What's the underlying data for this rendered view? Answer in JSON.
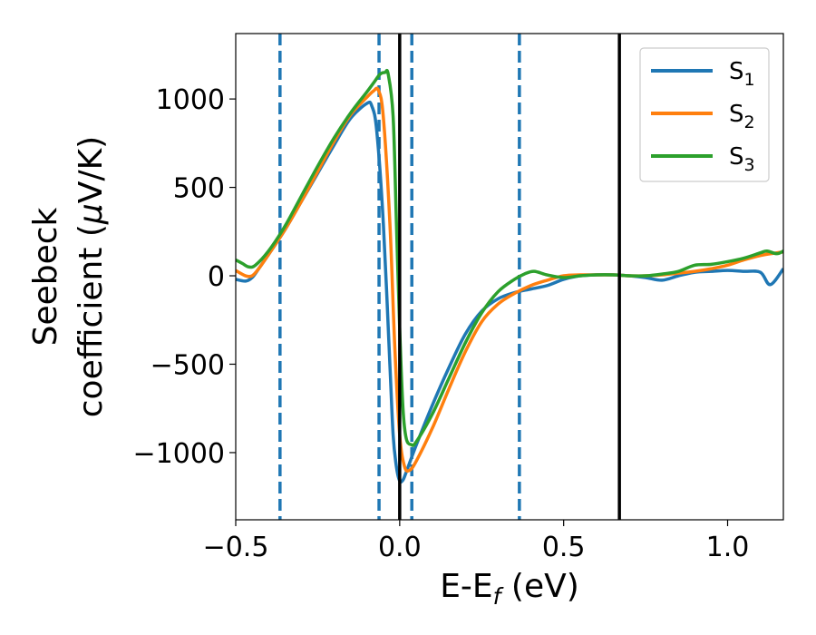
{
  "chart_data": {
    "type": "line",
    "xlabel": {
      "main": "E-E",
      "sub": "f",
      "tail": " (eV)"
    },
    "ylabel": {
      "line1": "Seebeck",
      "line2_prefix": "coefficient  (",
      "mu": "μ",
      "line2_suffix": "V/K)"
    },
    "xlim": [
      -0.5,
      1.17
    ],
    "ylim": [
      -1380,
      1370
    ],
    "xticks": [
      {
        "value": -0.5,
        "label": "−0.5"
      },
      {
        "value": 0.0,
        "label": "0.0"
      },
      {
        "value": 0.5,
        "label": "0.5"
      },
      {
        "value": 1.0,
        "label": "1.0"
      }
    ],
    "yticks": [
      {
        "value": -1000,
        "label": "−1000"
      },
      {
        "value": -500,
        "label": "−500"
      },
      {
        "value": 0,
        "label": "0"
      },
      {
        "value": 500,
        "label": "500"
      },
      {
        "value": 1000,
        "label": "1000"
      }
    ],
    "grid": false,
    "legend_position": "top-right",
    "vlines_dashed": {
      "x": [
        -0.365,
        -0.063,
        0.037,
        0.365
      ],
      "color": "#1f77b4"
    },
    "vlines_solid": {
      "x": [
        0.0,
        0.67
      ],
      "color": "#000000"
    },
    "series": [
      {
        "name": "S",
        "sub": "1",
        "color": "#1f77b4",
        "x": [
          -0.5,
          -0.47,
          -0.45,
          -0.43,
          -0.4,
          -0.35,
          -0.3,
          -0.25,
          -0.2,
          -0.15,
          -0.1,
          -0.085,
          -0.07,
          -0.05,
          -0.03,
          -0.02,
          -0.01,
          0.0,
          0.01,
          0.02,
          0.05,
          0.1,
          0.15,
          0.2,
          0.25,
          0.3,
          0.35,
          0.4,
          0.45,
          0.5,
          0.55,
          0.6,
          0.65,
          0.7,
          0.75,
          0.8,
          0.85,
          0.9,
          0.95,
          1.0,
          1.05,
          1.1,
          1.13,
          1.17
        ],
        "y": [
          -20,
          -30,
          -10,
          40,
          120,
          260,
          420,
          580,
          740,
          890,
          975,
          960,
          820,
          300,
          -500,
          -900,
          -1080,
          -1160,
          -1155,
          -1110,
          -960,
          -730,
          -520,
          -330,
          -200,
          -130,
          -95,
          -75,
          -55,
          -20,
          0,
          5,
          5,
          0,
          -10,
          -25,
          0,
          20,
          25,
          30,
          25,
          20,
          -50,
          40
        ]
      },
      {
        "name": "S",
        "sub": "2",
        "color": "#ff7f0e",
        "x": [
          -0.5,
          -0.47,
          -0.45,
          -0.43,
          -0.4,
          -0.35,
          -0.3,
          -0.25,
          -0.2,
          -0.15,
          -0.1,
          -0.08,
          -0.065,
          -0.05,
          -0.03,
          -0.015,
          0.0,
          0.015,
          0.03,
          0.05,
          0.1,
          0.15,
          0.2,
          0.25,
          0.3,
          0.35,
          0.4,
          0.45,
          0.5,
          0.55,
          0.6,
          0.65,
          0.7,
          0.75,
          0.8,
          0.85,
          0.9,
          0.95,
          1.0,
          1.05,
          1.1,
          1.15,
          1.17
        ],
        "y": [
          30,
          0,
          0,
          40,
          120,
          260,
          420,
          590,
          760,
          910,
          1010,
          1045,
          1050,
          900,
          300,
          -400,
          -900,
          -1080,
          -1100,
          -1050,
          -860,
          -640,
          -430,
          -260,
          -160,
          -100,
          -55,
          -25,
          0,
          5,
          5,
          5,
          0,
          0,
          5,
          15,
          25,
          40,
          60,
          90,
          115,
          130,
          135
        ]
      },
      {
        "name": "S",
        "sub": "3",
        "color": "#2ca02c",
        "x": [
          -0.5,
          -0.48,
          -0.46,
          -0.44,
          -0.4,
          -0.35,
          -0.3,
          -0.25,
          -0.2,
          -0.15,
          -0.1,
          -0.08,
          -0.06,
          -0.045,
          -0.035,
          -0.02,
          -0.01,
          0.0,
          0.01,
          0.02,
          0.035,
          0.05,
          0.1,
          0.15,
          0.2,
          0.25,
          0.3,
          0.35,
          0.38,
          0.41,
          0.45,
          0.5,
          0.55,
          0.6,
          0.65,
          0.7,
          0.75,
          0.8,
          0.85,
          0.9,
          0.95,
          1.0,
          1.05,
          1.1,
          1.12,
          1.15,
          1.17
        ],
        "y": [
          90,
          70,
          50,
          60,
          140,
          280,
          450,
          620,
          780,
          920,
          1040,
          1090,
          1140,
          1150,
          1140,
          900,
          300,
          -300,
          -750,
          -920,
          -955,
          -940,
          -780,
          -580,
          -380,
          -210,
          -90,
          -20,
          10,
          25,
          5,
          -10,
          0,
          5,
          5,
          0,
          0,
          10,
          25,
          60,
          65,
          80,
          100,
          130,
          140,
          125,
          140
        ]
      }
    ]
  }
}
